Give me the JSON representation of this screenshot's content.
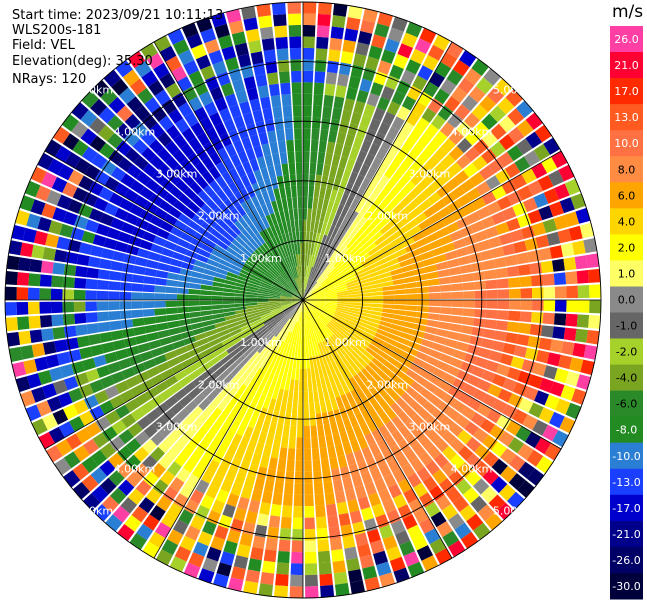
{
  "info": {
    "start_time": "Start time: 2023/09/21 10:11:13",
    "instrument": "WLS200s-181",
    "field": "Field: VEL",
    "elevation": "Elevation(deg): 35.30",
    "nrays": "NRays: 120"
  },
  "colorbar": {
    "unit": "m/s",
    "levels": [
      {
        "label": "26.0",
        "color": "#ff3fa4"
      },
      {
        "label": "21.0",
        "color": "#ff0033"
      },
      {
        "label": "17.0",
        "color": "#ff2a00"
      },
      {
        "label": "13.0",
        "color": "#ff5a1f"
      },
      {
        "label": "10.0",
        "color": "#ff7043"
      },
      {
        "label": "8.0",
        "color": "#ff8c42"
      },
      {
        "label": "6.0",
        "color": "#ffa500"
      },
      {
        "label": "4.0",
        "color": "#ffd500"
      },
      {
        "label": "2.0",
        "color": "#ffff00"
      },
      {
        "label": "1.0",
        "color": "#ffff66"
      },
      {
        "label": "0.0",
        "color": "#8a8a8a"
      },
      {
        "label": "-1.0",
        "color": "#666666"
      },
      {
        "label": "-2.0",
        "color": "#a6d12a"
      },
      {
        "label": "-4.0",
        "color": "#7aa520"
      },
      {
        "label": "-6.0",
        "color": "#2a8a2a"
      },
      {
        "label": "-8.0",
        "color": "#228b22"
      },
      {
        "label": "-10.0",
        "color": "#2a7fd4"
      },
      {
        "label": "-13.0",
        "color": "#1a3fff"
      },
      {
        "label": "-17.0",
        "color": "#0000cc"
      },
      {
        "label": "-21.0",
        "color": "#00008b"
      },
      {
        "label": "-26.0",
        "color": "#000066"
      },
      {
        "label": "-30.0",
        "color": "#00003a"
      }
    ]
  },
  "range_rings": [
    {
      "label": "1.00km",
      "value": 1
    },
    {
      "label": "2.00km",
      "value": 2
    },
    {
      "label": "3.00km",
      "value": 3
    },
    {
      "label": "4.00km",
      "value": 4
    },
    {
      "label": "5.00km",
      "value": 5
    }
  ],
  "chart_data": {
    "type": "heatmap",
    "projection": "polar (PPI scan)",
    "field": "VEL",
    "unit": "m/s",
    "n_rays": 120,
    "elevation_deg": 35.3,
    "range_rings_km": [
      1,
      2,
      3,
      4,
      5
    ],
    "max_range_km": 5.0,
    "spokes_every_deg": 30,
    "pattern": "dipole: receding (positive, yellow-orange-red) toward east and southeast; approaching (negative, green-blue) toward northwest and southwest; noisy high-magnitude values beyond about 3.5 km",
    "colormap_boundaries": [
      -30.0,
      -26.0,
      -21.0,
      -17.0,
      -13.0,
      -10.0,
      -8.0,
      -6.0,
      -4.0,
      -2.0,
      -1.0,
      0.0,
      1.0,
      2.0,
      4.0,
      6.0,
      8.0,
      10.0,
      13.0,
      17.0,
      21.0,
      26.0
    ]
  }
}
